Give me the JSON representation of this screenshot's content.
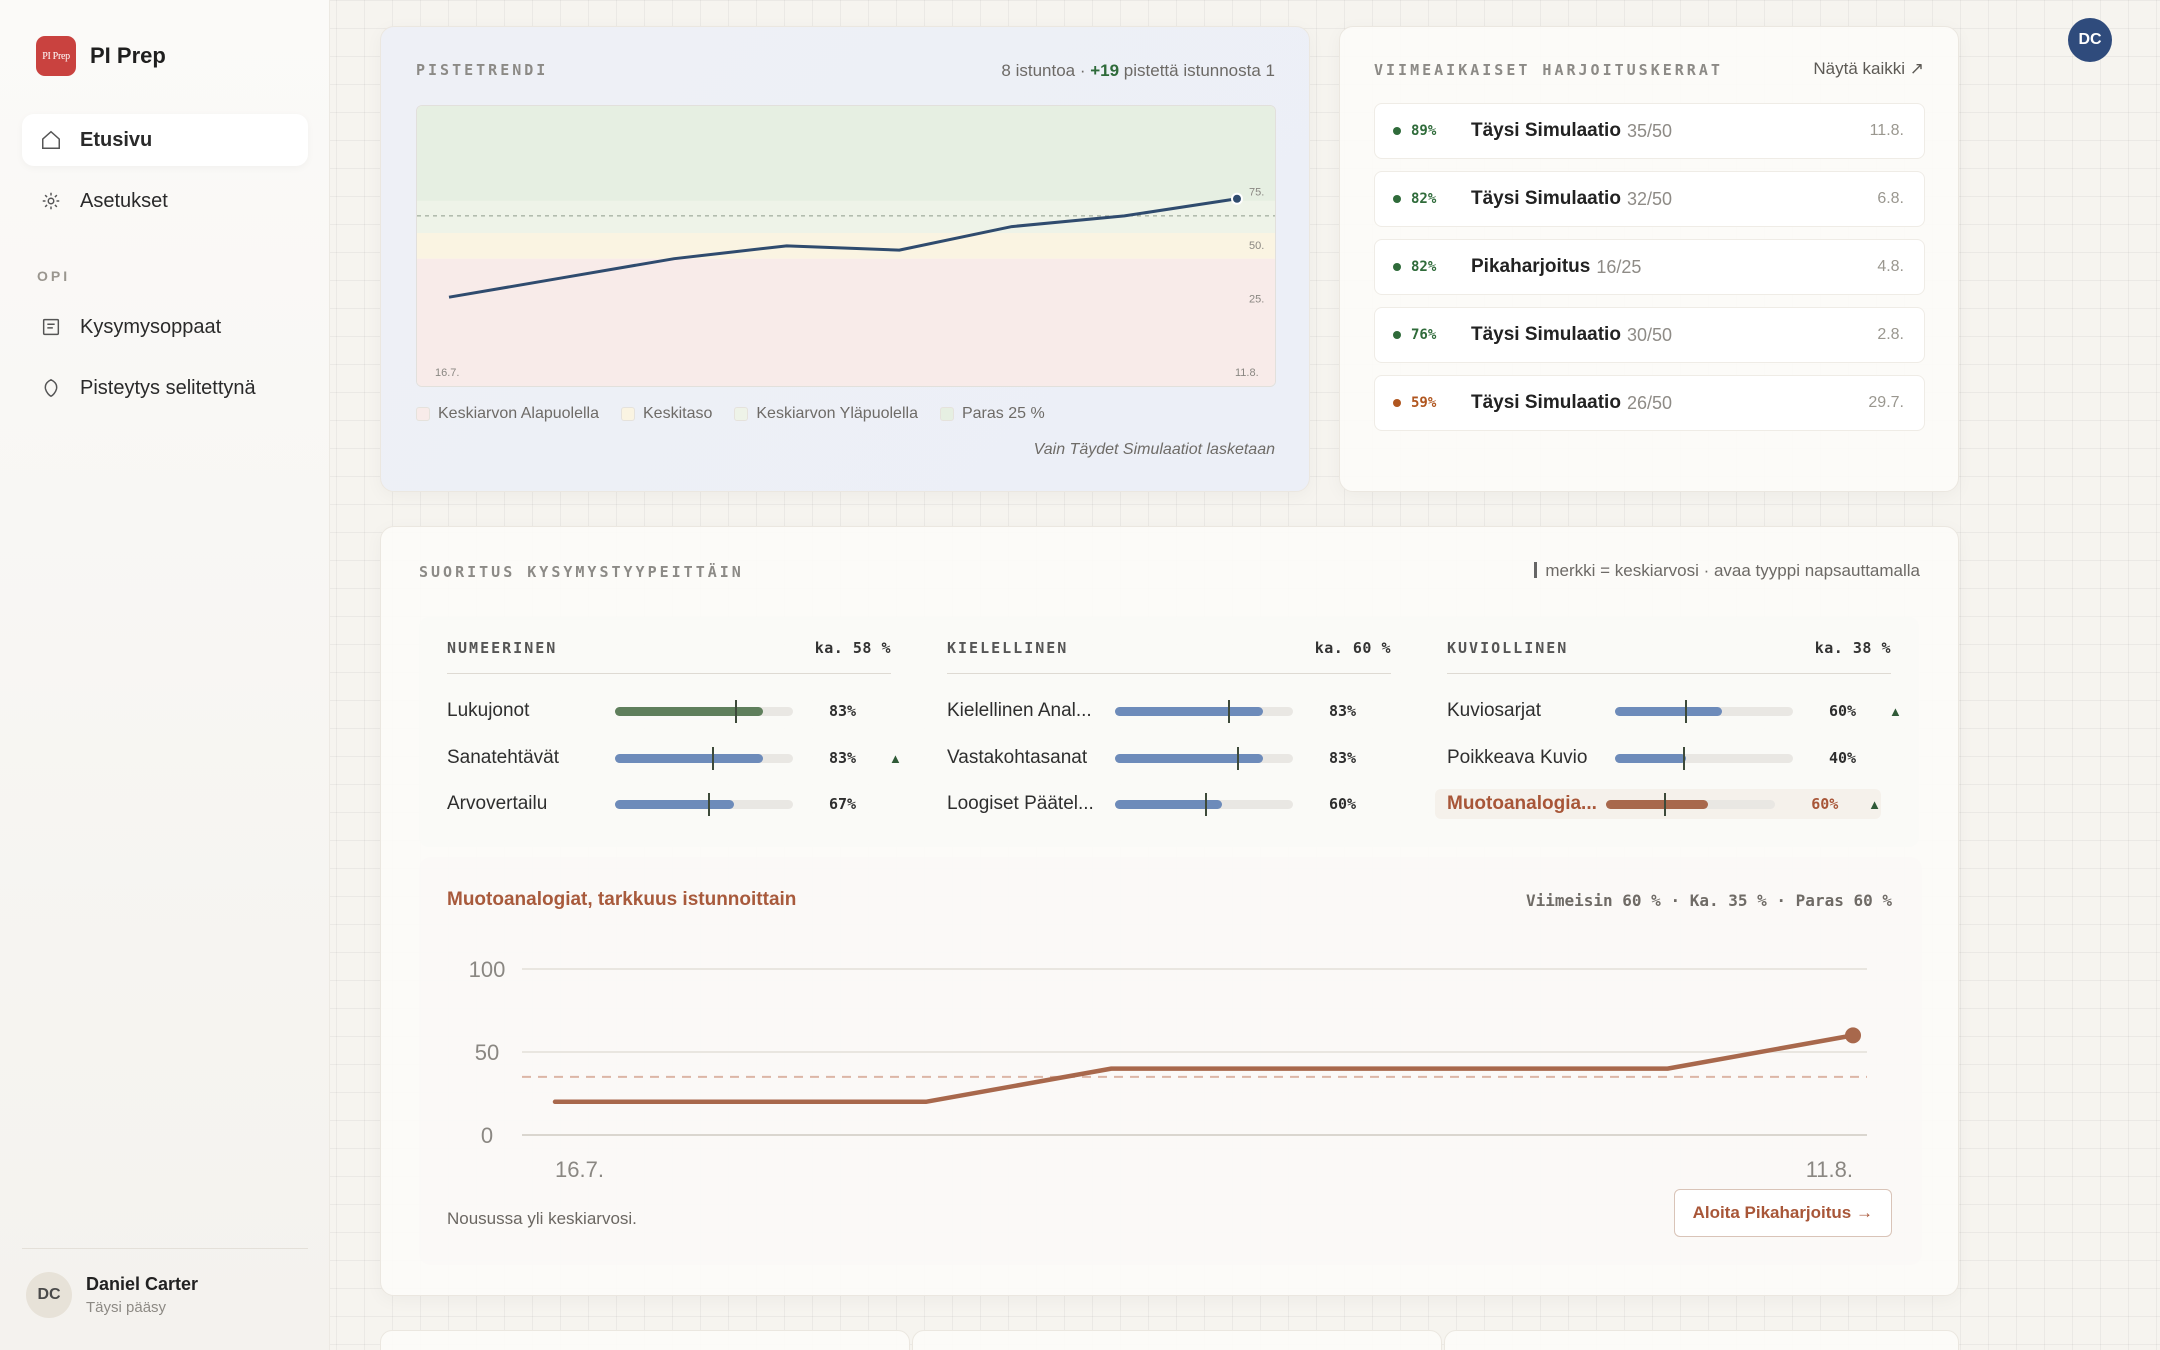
{
  "brand": {
    "name": "PI Prep",
    "logo_text": "PI Prep"
  },
  "sidebar": {
    "nav": [
      {
        "label": "Etusivu",
        "icon": "home-icon"
      },
      {
        "label": "Asetukset",
        "icon": "gear-icon"
      }
    ],
    "section_label": "OPI",
    "learn": [
      {
        "label": "Kysymysoppaat",
        "icon": "guide-icon"
      },
      {
        "label": "Pisteytys selitettynä",
        "icon": "shield-icon"
      }
    ],
    "user": {
      "initials": "DC",
      "name": "Daniel Carter",
      "plan": "Täysi pääsy"
    }
  },
  "header": {
    "avatar_initials": "DC"
  },
  "trend": {
    "title": "PISTETRENDI",
    "meta_prefix": "8 istuntoa · ",
    "meta_delta": "+19",
    "meta_suffix": " pistettä istunnosta 1",
    "legend": [
      "Keskiarvon Alapuolella",
      "Keskitaso",
      "Keskiarvon Yläpuolella",
      "Paras 25 %"
    ],
    "footnote": "Vain Täydet Simulaatiot lasketaan",
    "chart_data": {
      "type": "line",
      "x": [
        "16.7.",
        "",
        "",
        "",
        "",
        "",
        "",
        "11.8."
      ],
      "values": [
        20,
        29,
        38,
        44,
        42,
        53,
        58,
        66
      ],
      "ylim": [
        0,
        100
      ],
      "y_ticks": [
        "75.",
        "50.",
        "25."
      ],
      "x_ticks": [
        "16.7.",
        "11.8."
      ],
      "bands": [
        {
          "name": "Keskiarvon Alapuolella",
          "color": "#f8ebe9"
        },
        {
          "name": "Keskitaso",
          "color": "#faf4e2"
        },
        {
          "name": "Keskiarvon Yläpuolella",
          "color": "#eef3e8"
        },
        {
          "name": "Paras 25 %",
          "color": "#e6efe2"
        }
      ],
      "line_color": "#2f4b6e"
    }
  },
  "recent": {
    "title": "VIIMEAIKAISET HARJOITUSKERRAT",
    "link": "Näytä kaikki ↗",
    "items": [
      {
        "pct": "89%",
        "name": "Täysi Simulaatio",
        "score": "35/50",
        "date": "11.8.",
        "color": "#2f6b3a"
      },
      {
        "pct": "82%",
        "name": "Täysi Simulaatio",
        "score": "32/50",
        "date": "6.8.",
        "color": "#2f6b3a"
      },
      {
        "pct": "82%",
        "name": "Pikaharjoitus",
        "score": "16/25",
        "date": "4.8.",
        "color": "#2f6b3a"
      },
      {
        "pct": "76%",
        "name": "Täysi Simulaatio",
        "score": "30/50",
        "date": "2.8.",
        "color": "#2f6b3a"
      },
      {
        "pct": "59%",
        "name": "Täysi Simulaatio",
        "score": "26/50",
        "date": "29.7.",
        "color": "#b0561f"
      }
    ]
  },
  "performance": {
    "title": "SUORITUS KYSYMYSTYYPEITTÄIN",
    "note": "merkki = keskiarvosi · avaa tyyppi napsauttamalla",
    "groups": [
      {
        "name": "NUMEERINEN",
        "avg": "ka. 58 %",
        "items": [
          {
            "label": "Lukujonot",
            "value": 0.83,
            "text": "83%",
            "avg": 0.68,
            "arrow": "",
            "color": "#5f7f5c"
          },
          {
            "label": "Sanatehtävät",
            "value": 0.83,
            "text": "83%",
            "avg": 0.55,
            "arrow": "▲",
            "color": "#6d8bba"
          },
          {
            "label": "Arvovertailu",
            "value": 0.67,
            "text": "67%",
            "avg": 0.53,
            "arrow": "",
            "color": "#6d8bba"
          }
        ]
      },
      {
        "name": "KIELELLINEN",
        "avg": "ka. 60 %",
        "items": [
          {
            "label": "Kielellinen Anal...",
            "value": 0.83,
            "text": "83%",
            "avg": 0.64,
            "arrow": "",
            "color": "#6d8bba"
          },
          {
            "label": "Vastakohtasanat",
            "value": 0.83,
            "text": "83%",
            "avg": 0.69,
            "arrow": "",
            "color": "#6d8bba"
          },
          {
            "label": "Loogiset Päätel...",
            "value": 0.6,
            "text": "60%",
            "avg": 0.51,
            "arrow": "",
            "color": "#6d8bba"
          }
        ]
      },
      {
        "name": "KUVIOLLINEN",
        "avg": "ka. 38 %",
        "items": [
          {
            "label": "Kuviosarjat",
            "value": 0.6,
            "text": "60%",
            "avg": 0.4,
            "arrow": "▲",
            "color": "#6d8bba"
          },
          {
            "label": "Poikkeava Kuvio",
            "value": 0.4,
            "text": "40%",
            "avg": 0.39,
            "arrow": "",
            "color": "#6d8bba"
          },
          {
            "label": "Muotoanalogia...",
            "value": 0.6,
            "text": "60%",
            "avg": 0.35,
            "arrow": "▲",
            "color": "#a8684c",
            "highlight": true
          }
        ]
      }
    ],
    "detail": {
      "title": "Muotoanalogiat, tarkkuus istunnoittain",
      "stats": "Viimeisin 60 % · Ka. 35 % · Paras 60 %",
      "footnote": "Nousussa yli keskiarvosi.",
      "button": "Aloita Pikaharjoitus →",
      "chart_data": {
        "type": "line",
        "x_ticks": [
          "16.7.",
          "11.8."
        ],
        "values": [
          20,
          20,
          20,
          40,
          40,
          40,
          40,
          60
        ],
        "average": 35,
        "ylim": [
          0,
          100
        ],
        "y_ticks": [
          "100",
          "50",
          "0"
        ],
        "line_color": "#a8684c"
      }
    }
  }
}
